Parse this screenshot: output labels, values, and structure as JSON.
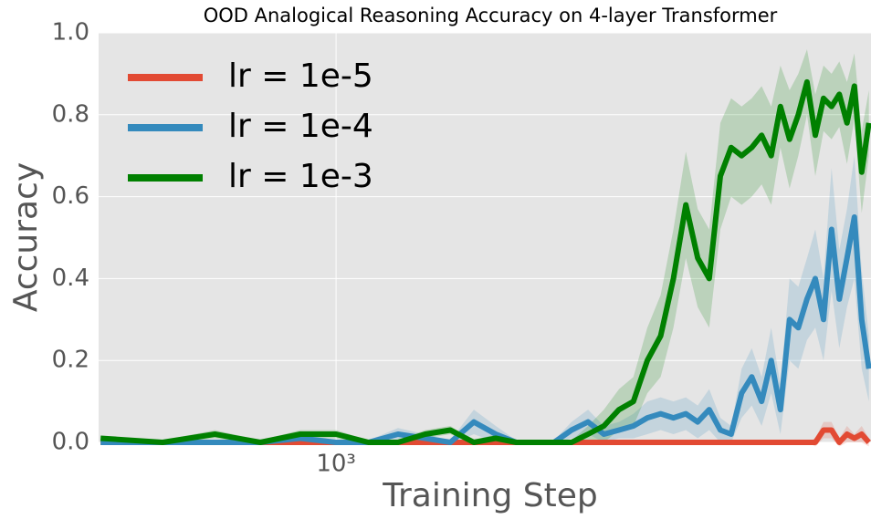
{
  "chart_data": {
    "type": "line",
    "title": "OOD Analogical Reasoning Accuracy on 4-layer Transformer",
    "x_label": "Training Step",
    "y_label": "Accuracy",
    "xscale": "log",
    "xlim": [
      497,
      4830
    ],
    "xticks": [
      {
        "value": 1000,
        "label": "10³"
      }
    ],
    "ylim": [
      0,
      1
    ],
    "yticks": [
      {
        "value": 0,
        "label": "0.0"
      },
      {
        "value": 0.2,
        "label": "0.2"
      },
      {
        "value": 0.4,
        "label": "0.4"
      },
      {
        "value": 0.6,
        "label": "0.6"
      },
      {
        "value": 0.8,
        "label": "0.8"
      },
      {
        "value": 1,
        "label": "1.0"
      }
    ],
    "grid": true,
    "legend": "upper left",
    "x": [
      500,
      600,
      700,
      800,
      900,
      1000,
      1100,
      1200,
      1300,
      1400,
      1500,
      1600,
      1700,
      1800,
      1900,
      2000,
      2100,
      2200,
      2300,
      2400,
      2500,
      2600,
      2700,
      2800,
      2900,
      3000,
      3100,
      3200,
      3300,
      3400,
      3500,
      3600,
      3700,
      3800,
      3900,
      4000,
      4100,
      4200,
      4300,
      4400,
      4500,
      4600,
      4700,
      4800
    ],
    "series": [
      {
        "name": "lr = 1e-5",
        "color": "#e24a33",
        "values": [
          0,
          0,
          0,
          0,
          0,
          0,
          0,
          0,
          0,
          0,
          0,
          0,
          0,
          0,
          0,
          0,
          0,
          0,
          0,
          0,
          0,
          0,
          0,
          0,
          0,
          0,
          0,
          0,
          0,
          0,
          0,
          0,
          0,
          0,
          0,
          0,
          0,
          0.03,
          0.03,
          0,
          0.02,
          0.01,
          0.02,
          0
        ],
        "std": [
          0,
          0,
          0,
          0,
          0,
          0,
          0,
          0,
          0,
          0,
          0,
          0,
          0,
          0,
          0,
          0,
          0,
          0,
          0,
          0,
          0,
          0,
          0,
          0,
          0,
          0,
          0,
          0,
          0,
          0,
          0,
          0,
          0,
          0,
          0,
          0,
          0.01,
          0.02,
          0.02,
          0.01,
          0.02,
          0.01,
          0.02,
          0.01
        ]
      },
      {
        "name": "lr = 1e-4",
        "color": "#348abd",
        "values": [
          0,
          0,
          0,
          0,
          0.01,
          0,
          0,
          0.02,
          0.01,
          0,
          0.05,
          0.02,
          0,
          0,
          0,
          0.03,
          0.05,
          0.02,
          0.03,
          0.04,
          0.06,
          0.07,
          0.06,
          0.07,
          0.05,
          0.08,
          0.03,
          0.02,
          0.12,
          0.16,
          0.1,
          0.2,
          0.08,
          0.3,
          0.28,
          0.35,
          0.4,
          0.3,
          0.52,
          0.35,
          0.45,
          0.55,
          0.3,
          0.18
        ],
        "std": [
          0.005,
          0.005,
          0.005,
          0.005,
          0.01,
          0.005,
          0.005,
          0.015,
          0.01,
          0.005,
          0.03,
          0.02,
          0.005,
          0.005,
          0.005,
          0.02,
          0.03,
          0.02,
          0.02,
          0.03,
          0.04,
          0.04,
          0.04,
          0.04,
          0.04,
          0.05,
          0.03,
          0.02,
          0.06,
          0.07,
          0.06,
          0.08,
          0.06,
          0.1,
          0.1,
          0.1,
          0.12,
          0.1,
          0.15,
          0.12,
          0.12,
          0.15,
          0.12,
          0.08
        ]
      },
      {
        "name": "lr = 1e-3",
        "color": "#008000",
        "values": [
          0.01,
          0,
          0.02,
          0,
          0.02,
          0.02,
          0,
          0,
          0.02,
          0.03,
          0,
          0.01,
          0,
          0,
          0,
          0,
          0.02,
          0.04,
          0.08,
          0.1,
          0.2,
          0.26,
          0.4,
          0.58,
          0.45,
          0.4,
          0.65,
          0.72,
          0.7,
          0.72,
          0.75,
          0.7,
          0.82,
          0.74,
          0.8,
          0.88,
          0.75,
          0.84,
          0.82,
          0.85,
          0.78,
          0.87,
          0.66,
          0.78
        ],
        "std": [
          0.005,
          0.005,
          0.01,
          0.005,
          0.01,
          0.01,
          0.005,
          0.005,
          0.01,
          0.01,
          0.005,
          0.01,
          0.005,
          0.005,
          0.005,
          0.005,
          0.02,
          0.04,
          0.05,
          0.06,
          0.08,
          0.1,
          0.12,
          0.13,
          0.12,
          0.12,
          0.13,
          0.12,
          0.12,
          0.12,
          0.12,
          0.12,
          0.1,
          0.12,
          0.1,
          0.08,
          0.1,
          0.08,
          0.08,
          0.08,
          0.1,
          0.08,
          0.1,
          0.08
        ]
      }
    ]
  }
}
